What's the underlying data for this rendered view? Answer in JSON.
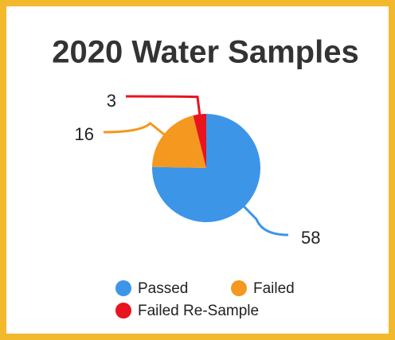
{
  "chart_data": {
    "type": "pie",
    "title": "2020 Water Samples",
    "categories": [
      "Passed",
      "Failed",
      "Failed Re-Sample"
    ],
    "values": [
      58,
      16,
      3
    ],
    "colors": [
      "#3d95e8",
      "#f4981f",
      "#e8141e"
    ],
    "legend": "bottom"
  }
}
